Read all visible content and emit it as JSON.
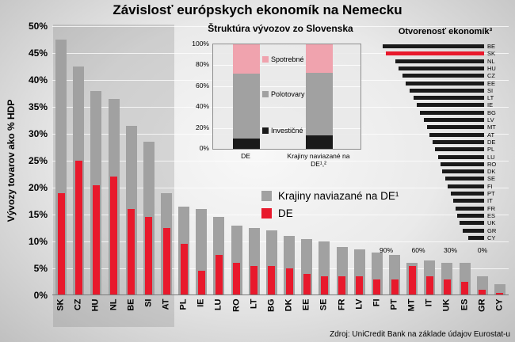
{
  "title": "Závislosť európskych ekonomík na Nemecku",
  "source": "Zdroj: UniCredit Bank na základe údajov Eurostat-u",
  "colors": {
    "red": "#e8192c",
    "gray": "#a1a1a1",
    "pink": "#f0a3ae",
    "black": "#1a1a1a"
  },
  "legend": [
    {
      "label": "Krajiny naviazané na DE¹",
      "color": "gray"
    },
    {
      "label": "DE",
      "color": "red"
    }
  ],
  "chart_data": [
    {
      "name": "main",
      "type": "bar",
      "title": "Závislosť európskych ekonomík na Nemecku",
      "ylabel": "Vývozy tovarov ako % HDP",
      "ylim": [
        0,
        50
      ],
      "ytick_step": 5,
      "ytick_labels": [
        "0%",
        "5%",
        "10%",
        "15%",
        "20%",
        "25%",
        "30%",
        "35%",
        "40%",
        "45%",
        "50%"
      ],
      "grid": true,
      "highlight_count": 7,
      "categories": [
        "SK",
        "CZ",
        "HU",
        "NL",
        "BE",
        "SI",
        "AT",
        "PL",
        "IE",
        "LU",
        "RO",
        "LT",
        "BG",
        "DK",
        "EE",
        "SE",
        "FR",
        "LV",
        "FI",
        "PT",
        "MT",
        "IT",
        "UK",
        "ES",
        "GR",
        "CY"
      ],
      "series": [
        {
          "name": "Krajiny naviazané na DE¹",
          "color": "gray",
          "values": [
            47.5,
            42.5,
            38,
            36.5,
            31.5,
            28.5,
            19,
            16.5,
            16,
            14.5,
            13,
            12.5,
            12,
            11,
            10.5,
            10,
            9,
            8.5,
            8,
            7.5,
            6,
            6.5,
            6,
            6,
            3.5,
            2
          ]
        },
        {
          "name": "DE",
          "color": "red",
          "values": [
            19,
            25,
            20.5,
            22,
            16,
            14.5,
            12.5,
            9.5,
            4.5,
            7.5,
            6,
            5.5,
            5.5,
            5,
            4,
            3.5,
            3.5,
            3.5,
            3,
            3,
            5.5,
            3.5,
            3,
            2.5,
            1,
            0.5
          ]
        }
      ]
    },
    {
      "name": "inset_structure",
      "type": "stacked-bar-100",
      "title": "Štruktúra vývozov zo Slovenska",
      "categories": [
        "DE",
        "Krajiny naviazané na DE¹,²"
      ],
      "yticks": [
        "0%",
        "20%",
        "40%",
        "60%",
        "80%",
        "100%"
      ],
      "series": [
        {
          "name": "Investičné",
          "color": "black",
          "values": [
            10,
            13
          ]
        },
        {
          "name": "Polotovary",
          "color": "gray",
          "values": [
            62,
            60
          ]
        },
        {
          "name": "Spotrebné",
          "color": "pink",
          "values": [
            28,
            27
          ]
        }
      ]
    },
    {
      "name": "inset_openness",
      "type": "hbar",
      "title": "Otvorenosť ekonomík³",
      "categories": [
        "BE",
        "SK",
        "NL",
        "HU",
        "CZ",
        "EE",
        "SI",
        "LT",
        "IE",
        "BG",
        "LV",
        "MT",
        "AT",
        "DE",
        "PL",
        "LU",
        "RO",
        "DK",
        "SE",
        "FI",
        "PT",
        "IT",
        "FR",
        "ES",
        "UK",
        "GR",
        "CY"
      ],
      "values": [
        95,
        92,
        83,
        80,
        76,
        73,
        70,
        66,
        63,
        60,
        56,
        53,
        51,
        48,
        46,
        43,
        41,
        39,
        36,
        34,
        31,
        29,
        27,
        25,
        23,
        20,
        15
      ],
      "highlight": "SK",
      "xticks": [
        "90%",
        "60%",
        "30%",
        "0%"
      ],
      "xaxis_reversed": true
    }
  ]
}
